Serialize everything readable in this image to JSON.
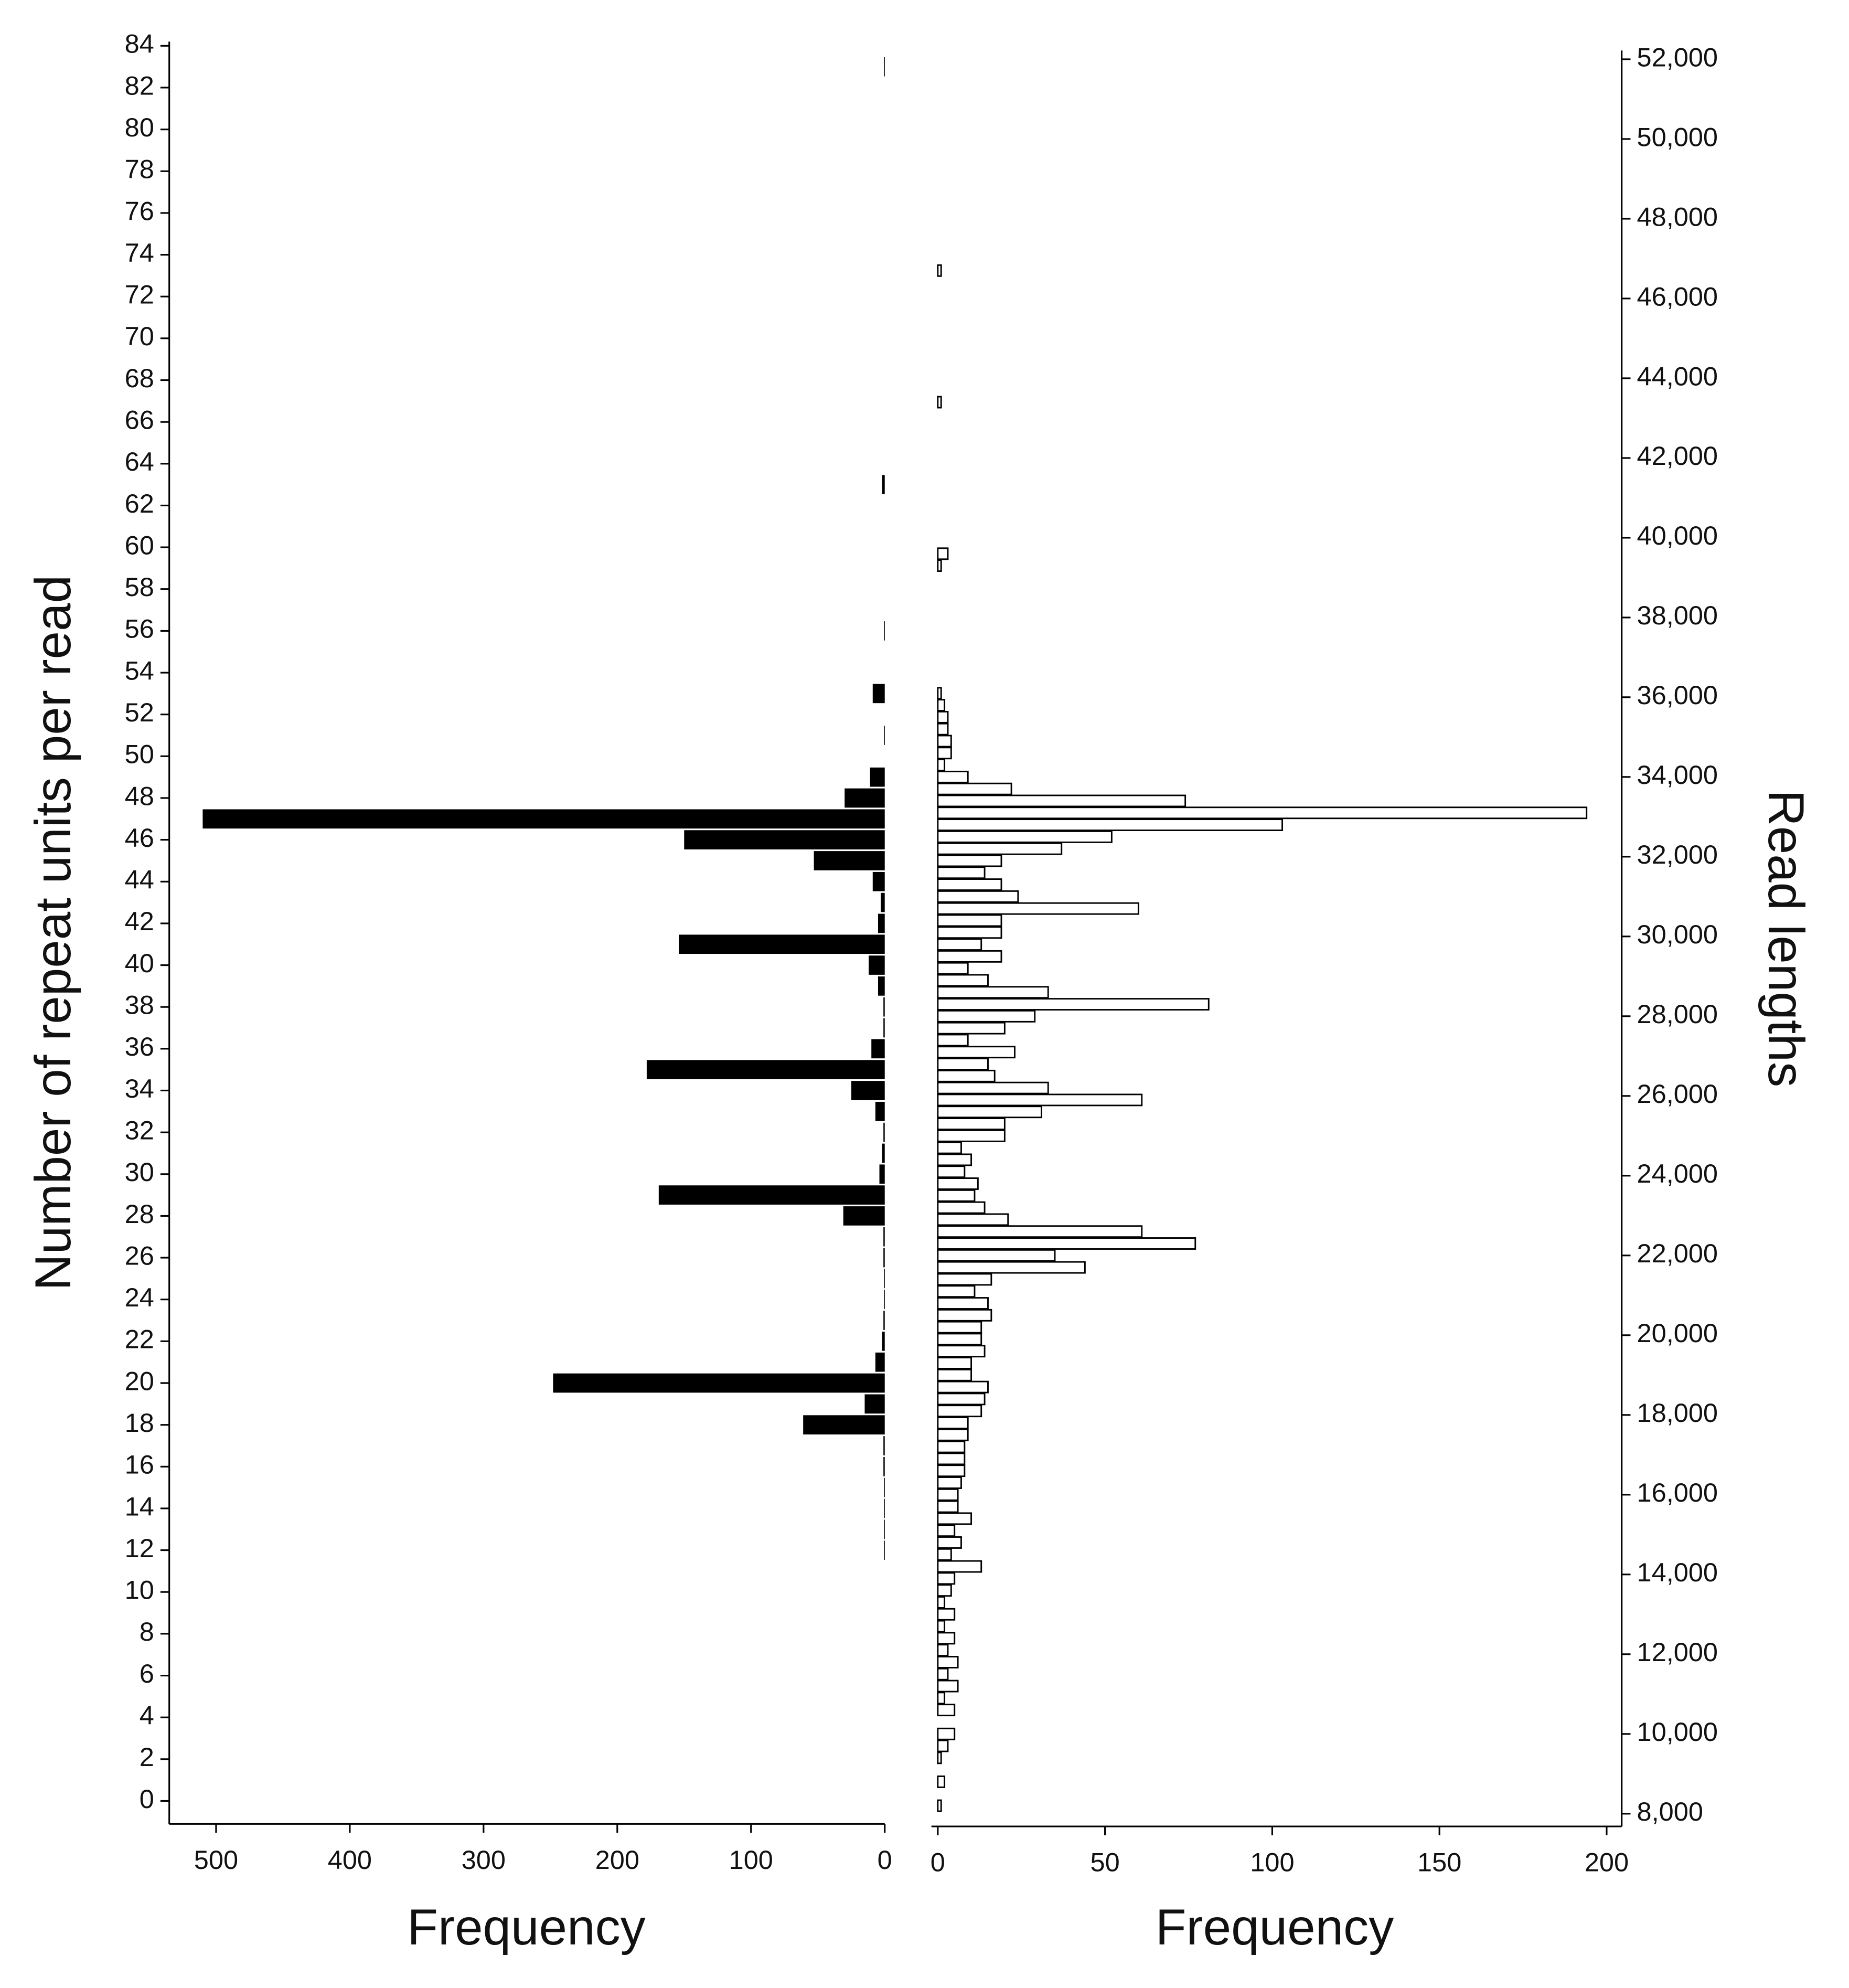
{
  "chart_data": [
    {
      "type": "bar",
      "orientation": "horizontal",
      "color": "#000000",
      "xlabel": "Frequency",
      "ylabel": "Number of repeat units per read",
      "y": [
        12,
        13,
        14,
        15,
        16,
        17,
        18,
        19,
        20,
        21,
        22,
        23,
        24,
        25,
        26,
        27,
        28,
        29,
        30,
        31,
        32,
        33,
        34,
        35,
        36,
        37,
        38,
        39,
        40,
        41,
        42,
        43,
        44,
        45,
        46,
        47,
        48,
        49,
        51,
        53,
        56,
        63,
        83
      ],
      "values": [
        0.5,
        0.5,
        0.5,
        0.5,
        1,
        1,
        61,
        15,
        248,
        7,
        2,
        1,
        0.5,
        0.5,
        1,
        1,
        31,
        169,
        4,
        2,
        1,
        7,
        25,
        178,
        10,
        1,
        1,
        5,
        12,
        154,
        5,
        3,
        9,
        53,
        150,
        510,
        30,
        11,
        0.5,
        9,
        0.5,
        2,
        0.5
      ],
      "xlim": [
        535,
        0
      ],
      "xticks": [
        500,
        400,
        300,
        200,
        100,
        0
      ],
      "ylim": [
        -1.1,
        84.2
      ],
      "yticks": [
        0,
        2,
        4,
        6,
        8,
        10,
        12,
        14,
        16,
        18,
        20,
        22,
        24,
        26,
        28,
        30,
        32,
        34,
        36,
        38,
        40,
        42,
        44,
        46,
        48,
        50,
        52,
        54,
        56,
        58,
        60,
        62,
        64,
        66,
        68,
        70,
        72,
        74,
        76,
        78,
        80,
        82,
        84
      ]
    },
    {
      "type": "bar",
      "orientation": "horizontal",
      "color": "#ffffff",
      "edgecolor": "#000000",
      "xlabel": "Frequency",
      "y2label": "Read lengths",
      "y": [
        46700,
        43400,
        39600,
        39300,
        36100,
        35800,
        35500,
        35200,
        34900,
        34600,
        34300,
        34000,
        33700,
        33400,
        33100,
        32800,
        32500,
        32200,
        31900,
        31600,
        31300,
        31000,
        30700,
        30400,
        30100,
        29800,
        29500,
        29200,
        28900,
        28600,
        28300,
        28000,
        27700,
        27400,
        27100,
        26800,
        26500,
        26200,
        25900,
        25600,
        25300,
        25000,
        24700,
        24400,
        24100,
        23800,
        23500,
        23200,
        22900,
        22600,
        22300,
        22000,
        21700,
        21400,
        21100,
        20800,
        20500,
        20200,
        19900,
        19600,
        19300,
        19000,
        18700,
        18400,
        18100,
        17800,
        17500,
        17200,
        16900,
        16600,
        16300,
        16000,
        15700,
        15400,
        15100,
        14800,
        14500,
        14200,
        13900,
        13600,
        13300,
        13000,
        12700,
        12400,
        12100,
        11800,
        11500,
        11200,
        10900,
        10600,
        10000,
        9700,
        9400,
        8800,
        8200
      ],
      "values": [
        1,
        1,
        3,
        1,
        1,
        2,
        3,
        3,
        4,
        4,
        2,
        9,
        22,
        74,
        194,
        103,
        52,
        37,
        19,
        14,
        19,
        24,
        60,
        19,
        19,
        13,
        19,
        9,
        15,
        33,
        81,
        29,
        20,
        9,
        23,
        15,
        17,
        33,
        61,
        31,
        20,
        20,
        7,
        10,
        8,
        12,
        11,
        14,
        21,
        61,
        77,
        35,
        44,
        16,
        11,
        15,
        16,
        13,
        13,
        14,
        10,
        10,
        15,
        14,
        13,
        9,
        9,
        8,
        8,
        8,
        7,
        6,
        6,
        10,
        5,
        7,
        4,
        13,
        5,
        4,
        2,
        5,
        2,
        5,
        3,
        6,
        3,
        6,
        2,
        5,
        5,
        3,
        1,
        2,
        1
      ],
      "xlim": [
        -1.9,
        204.5
      ],
      "xticks": [
        0,
        50,
        100,
        150,
        200
      ],
      "y2lim": [
        7680,
        52220
      ],
      "y2ticks": [
        {
          "value": 8000,
          "label": "8,000"
        },
        {
          "value": 10000,
          "label": "10,000"
        },
        {
          "value": 12000,
          "label": "12,000"
        },
        {
          "value": 14000,
          "label": "14,000"
        },
        {
          "value": 16000,
          "label": "16,000"
        },
        {
          "value": 18000,
          "label": "18,000"
        },
        {
          "value": 20000,
          "label": "20,000"
        },
        {
          "value": 22000,
          "label": "22,000"
        },
        {
          "value": 24000,
          "label": "24,000"
        },
        {
          "value": 26000,
          "label": "26,000"
        },
        {
          "value": 28000,
          "label": "28,000"
        },
        {
          "value": 30000,
          "label": "30,000"
        },
        {
          "value": 32000,
          "label": "32,000"
        },
        {
          "value": 34000,
          "label": "34,000"
        },
        {
          "value": 36000,
          "label": "36,000"
        },
        {
          "value": 38000,
          "label": "38,000"
        },
        {
          "value": 40000,
          "label": "40,000"
        },
        {
          "value": 42000,
          "label": "42,000"
        },
        {
          "value": 44000,
          "label": "44,000"
        },
        {
          "value": 46000,
          "label": "46,000"
        },
        {
          "value": 48000,
          "label": "48,000"
        },
        {
          "value": 50000,
          "label": "50,000"
        },
        {
          "value": 52000,
          "label": "52,000"
        }
      ]
    }
  ]
}
